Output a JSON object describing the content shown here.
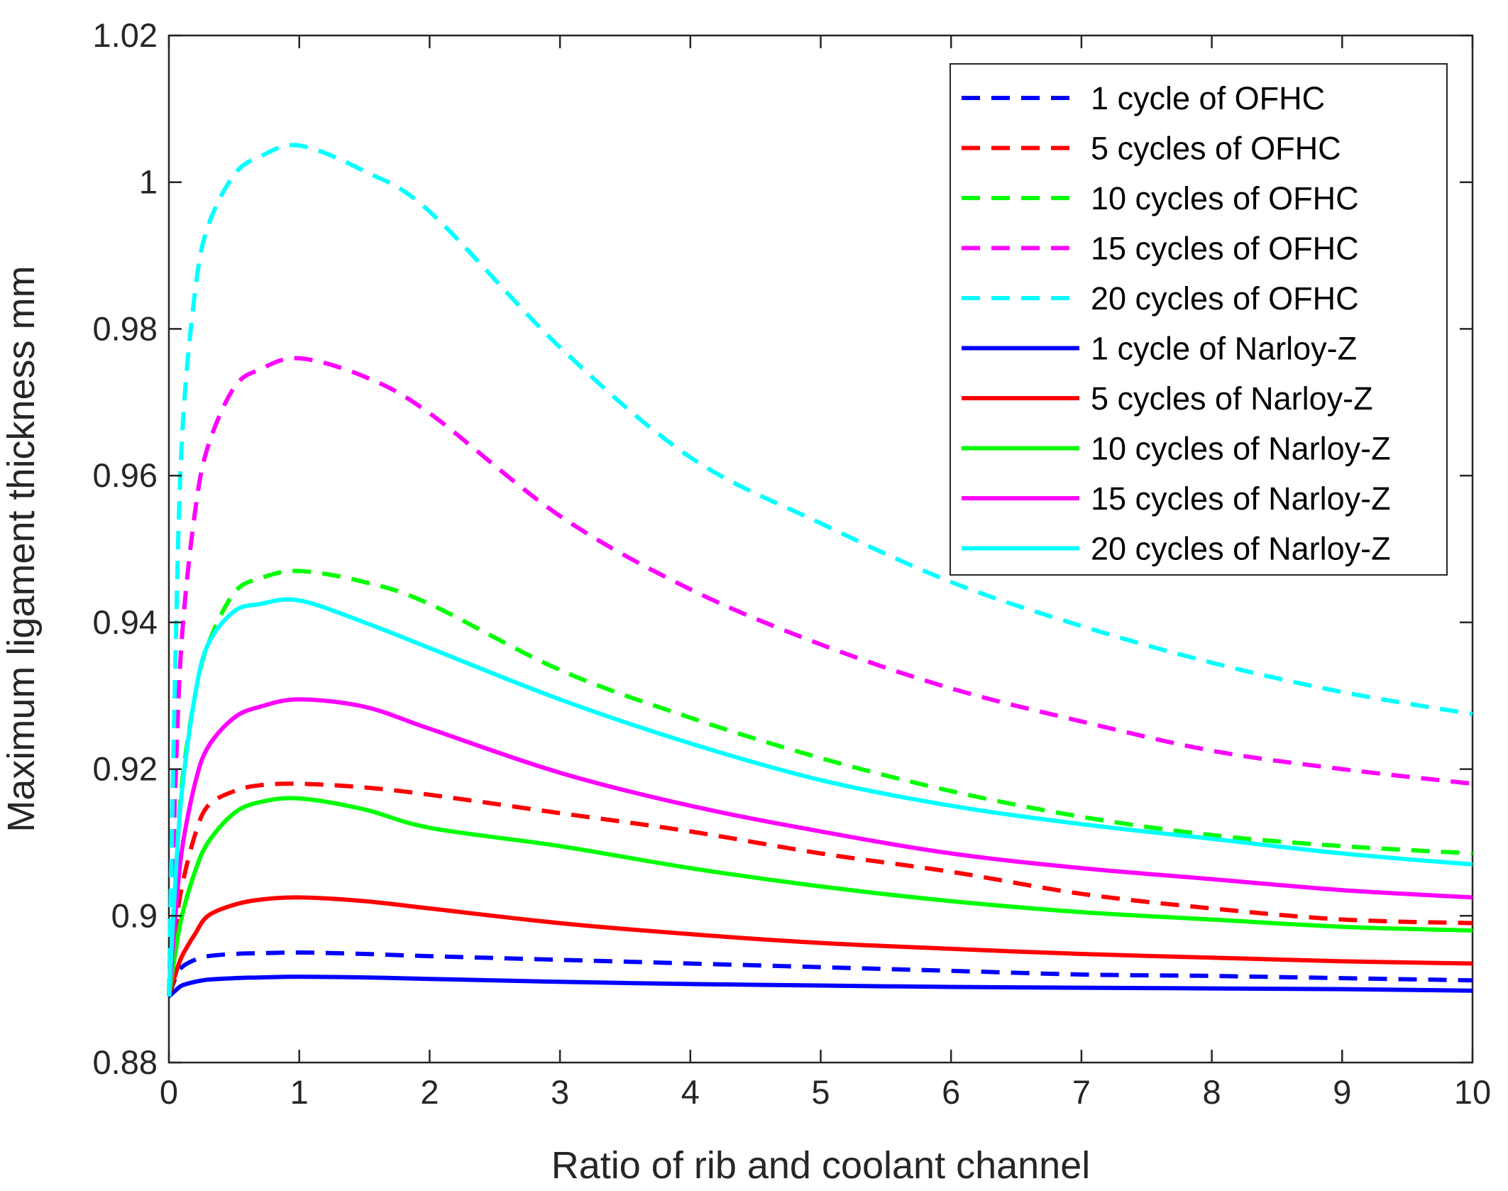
{
  "chart_data": {
    "type": "line",
    "title": "",
    "xlabel": "Ratio of rib and coolant channel",
    "ylabel": "Maximum ligament thickness mm",
    "xlim": [
      0,
      10
    ],
    "ylim": [
      0.88,
      1.02
    ],
    "xticks": [
      0,
      1,
      2,
      3,
      4,
      5,
      6,
      7,
      8,
      9,
      10
    ],
    "xtick_labels": [
      "0",
      "1",
      "2",
      "3",
      "4",
      "5",
      "6",
      "7",
      "8",
      "9",
      "10"
    ],
    "yticks": [
      0.88,
      0.9,
      0.92,
      0.94,
      0.96,
      0.98,
      1.0,
      1.02
    ],
    "ytick_labels": [
      "0.88",
      "0.9",
      "0.92",
      "0.94",
      "0.96",
      "0.98",
      "1",
      "1.02"
    ],
    "grid": false,
    "legend_position": "top-right",
    "x": [
      0,
      0.05,
      0.1,
      0.2,
      0.3,
      0.5,
      0.7,
      1,
      1.5,
      2,
      3,
      4,
      5,
      6,
      7,
      8,
      9,
      10
    ],
    "series": [
      {
        "name": "1 cycle of OFHC",
        "color": "#0000ff",
        "style": "dashed",
        "values": [
          0.889,
          0.8915,
          0.893,
          0.894,
          0.8945,
          0.8948,
          0.8949,
          0.895,
          0.8948,
          0.8945,
          0.894,
          0.8935,
          0.893,
          0.8925,
          0.892,
          0.8918,
          0.8915,
          0.8912
        ]
      },
      {
        "name": "5 cycles of OFHC",
        "color": "#ff0000",
        "style": "dashed",
        "values": [
          0.889,
          0.898,
          0.904,
          0.911,
          0.915,
          0.917,
          0.9178,
          0.918,
          0.9175,
          0.9165,
          0.914,
          0.9115,
          0.9085,
          0.906,
          0.903,
          0.901,
          0.8995,
          0.899
        ]
      },
      {
        "name": "10 cycles of OFHC",
        "color": "#00ff00",
        "style": "dashed",
        "values": [
          0.889,
          0.905,
          0.918,
          0.93,
          0.937,
          0.944,
          0.946,
          0.947,
          0.9455,
          0.9425,
          0.9335,
          0.927,
          0.9215,
          0.917,
          0.9135,
          0.911,
          0.9095,
          0.9085
        ]
      },
      {
        "name": "15 cycles of OFHC",
        "color": "#ff00ff",
        "style": "dashed",
        "values": [
          0.889,
          0.918,
          0.938,
          0.955,
          0.964,
          0.972,
          0.9745,
          0.976,
          0.9735,
          0.9685,
          0.9545,
          0.9445,
          0.937,
          0.931,
          0.9265,
          0.9225,
          0.92,
          0.918
        ]
      },
      {
        "name": "20 cycles of OFHC",
        "color": "#00ffff",
        "style": "dashed",
        "values": [
          0.889,
          0.935,
          0.965,
          0.985,
          0.994,
          1.001,
          1.0035,
          1.005,
          1.0015,
          0.996,
          0.9775,
          0.9625,
          0.9535,
          0.9455,
          0.9395,
          0.9345,
          0.9305,
          0.9275
        ]
      },
      {
        "name": "1 cycle of Narloy-Z",
        "color": "#0000ff",
        "style": "solid",
        "values": [
          0.889,
          0.8898,
          0.8905,
          0.891,
          0.8913,
          0.8915,
          0.8916,
          0.8917,
          0.8916,
          0.8914,
          0.891,
          0.8907,
          0.8905,
          0.8903,
          0.8902,
          0.8901,
          0.89,
          0.8898
        ]
      },
      {
        "name": "5 cycles of Narloy-Z",
        "color": "#ff0000",
        "style": "solid",
        "values": [
          0.889,
          0.892,
          0.8945,
          0.8975,
          0.9,
          0.9015,
          0.9022,
          0.9025,
          0.902,
          0.901,
          0.899,
          0.8975,
          0.8963,
          0.8955,
          0.8948,
          0.8943,
          0.8938,
          0.8935
        ]
      },
      {
        "name": "10 cycles of Narloy-Z",
        "color": "#00ff00",
        "style": "solid",
        "values": [
          0.889,
          0.895,
          0.9,
          0.906,
          0.91,
          0.914,
          0.9155,
          0.916,
          0.9145,
          0.912,
          0.9095,
          0.9065,
          0.904,
          0.902,
          0.9005,
          0.8995,
          0.8985,
          0.898
        ]
      },
      {
        "name": "15 cycles of Narloy-Z",
        "color": "#ff00ff",
        "style": "solid",
        "values": [
          0.889,
          0.9,
          0.909,
          0.918,
          0.923,
          0.927,
          0.9285,
          0.9295,
          0.9285,
          0.9255,
          0.9195,
          0.915,
          0.9115,
          0.9085,
          0.9065,
          0.905,
          0.9035,
          0.9025
        ]
      },
      {
        "name": "20 cycles of Narloy-Z",
        "color": "#00ffff",
        "style": "solid",
        "values": [
          0.889,
          0.905,
          0.917,
          0.93,
          0.937,
          0.9415,
          0.9425,
          0.943,
          0.94,
          0.9365,
          0.9295,
          0.9235,
          0.9185,
          0.915,
          0.9125,
          0.9105,
          0.9085,
          0.907
        ]
      }
    ]
  }
}
